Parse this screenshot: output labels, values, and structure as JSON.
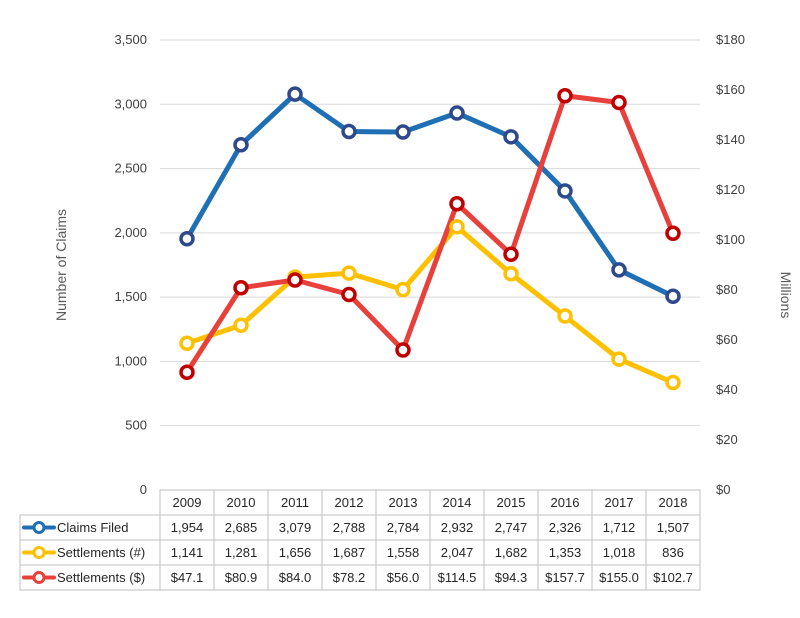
{
  "chart_data": {
    "type": "line",
    "categories": [
      "2009",
      "2010",
      "2011",
      "2012",
      "2013",
      "2014",
      "2015",
      "2016",
      "2017",
      "2018"
    ],
    "left_axis": {
      "label": "Number of Claims",
      "ylim": [
        0,
        3500
      ],
      "ticks": [
        "0",
        "500",
        "1,000",
        "1,500",
        "2,000",
        "2,500",
        "3,000",
        "3,500"
      ]
    },
    "right_axis": {
      "label": "Millions",
      "ylim": [
        0,
        180
      ],
      "ticks": [
        "$0",
        "$20",
        "$40",
        "$60",
        "$80",
        "$100",
        "$120",
        "$140",
        "$160",
        "$180"
      ]
    },
    "grid": true,
    "legend": "data-table",
    "series": [
      {
        "name": "Claims Filed",
        "axis": "left",
        "color": "#1f6fb5",
        "values": [
          1954,
          2685,
          3079,
          2788,
          2784,
          2932,
          2747,
          2326,
          1712,
          1507
        ],
        "labels": [
          "1,954",
          "2,685",
          "3,079",
          "2,788",
          "2,784",
          "2,932",
          "2,747",
          "2,326",
          "1,712",
          "1,507"
        ]
      },
      {
        "name": "Settlements (#)",
        "axis": "left",
        "color": "#ffc000",
        "values": [
          1141,
          1281,
          1656,
          1687,
          1558,
          2047,
          1682,
          1353,
          1018,
          836
        ],
        "labels": [
          "1,141",
          "1,281",
          "1,656",
          "1,687",
          "1,558",
          "2,047",
          "1,682",
          "1,353",
          "1,018",
          "836"
        ]
      },
      {
        "name": "Settlements ($)",
        "axis": "right",
        "color": "#e8413c",
        "values": [
          47.1,
          80.9,
          84.0,
          78.2,
          56.0,
          114.5,
          94.3,
          157.7,
          155.0,
          102.7
        ],
        "labels": [
          "$47.1",
          "$80.9",
          "$84.0",
          "$78.2",
          "$56.0",
          "$114.5",
          "$94.3",
          "$157.7",
          "$155.0",
          "$102.7"
        ]
      }
    ]
  }
}
